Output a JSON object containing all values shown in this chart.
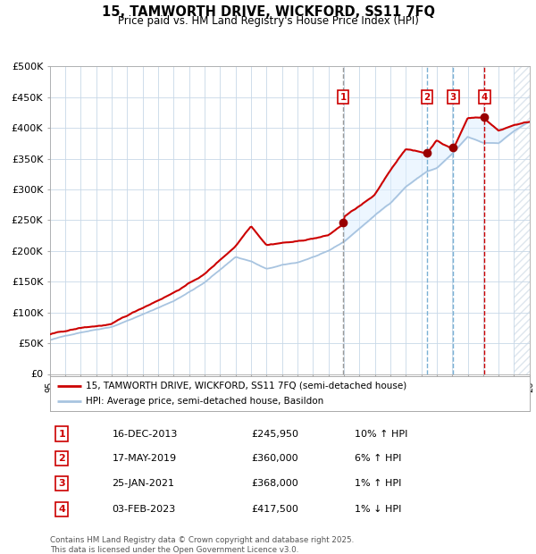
{
  "title": "15, TAMWORTH DRIVE, WICKFORD, SS11 7FQ",
  "subtitle": "Price paid vs. HM Land Registry's House Price Index (HPI)",
  "legend_line1": "15, TAMWORTH DRIVE, WICKFORD, SS11 7FQ (semi-detached house)",
  "legend_line2": "HPI: Average price, semi-detached house, Basildon",
  "footer": "Contains HM Land Registry data © Crown copyright and database right 2025.\nThis data is licensed under the Open Government Licence v3.0.",
  "sales": [
    {
      "num": 1,
      "date": "16-DEC-2013",
      "price": 245950,
      "year": 2013.96,
      "pct": "10%",
      "dir": "↑"
    },
    {
      "num": 2,
      "date": "17-MAY-2019",
      "price": 360000,
      "year": 2019.37,
      "pct": "6%",
      "dir": "↑"
    },
    {
      "num": 3,
      "date": "25-JAN-2021",
      "price": 368000,
      "year": 2021.07,
      "pct": "1%",
      "dir": "↑"
    },
    {
      "num": 4,
      "date": "03-FEB-2023",
      "price": 417500,
      "year": 2023.09,
      "pct": "1%",
      "dir": "↓"
    }
  ],
  "hpi_color": "#a8c4e0",
  "price_color": "#cc0000",
  "sale_dot_color": "#990000",
  "shade_color": "#ddeeff",
  "xmin": 1995,
  "xmax": 2026,
  "ymin": 0,
  "ymax": 500000,
  "yticks": [
    0,
    50000,
    100000,
    150000,
    200000,
    250000,
    300000,
    350000,
    400000,
    450000,
    500000
  ],
  "background_color": "#ffffff",
  "grid_color": "#c8d8e8",
  "hatch_start": 2025.0
}
